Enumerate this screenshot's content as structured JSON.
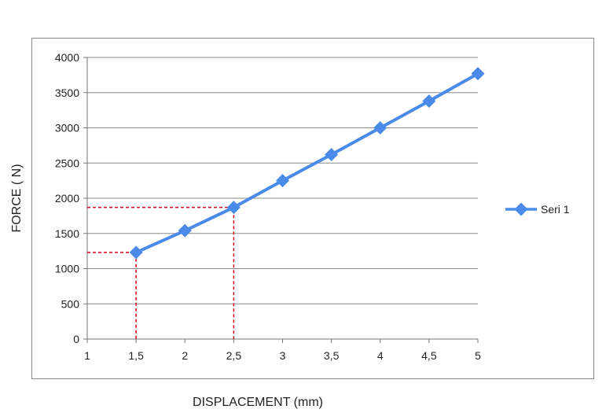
{
  "chart_data": {
    "type": "line",
    "title": "",
    "xlabel": "DISPLACEMENT (mm)",
    "ylabel": "FORCE ( N)",
    "xlim": [
      1,
      5
    ],
    "ylim": [
      0,
      4000
    ],
    "x_ticks": [
      "1",
      "1,5",
      "2",
      "2,5",
      "3",
      "3,5",
      "4",
      "4,5",
      "5"
    ],
    "y_ticks": [
      "0",
      "500",
      "1000",
      "1500",
      "2000",
      "2500",
      "3000",
      "3500",
      "4000"
    ],
    "grid": "horizontal",
    "legend_position": "right",
    "series": [
      {
        "name": "Seri 1",
        "color": "#4a8ae8",
        "marker": "diamond",
        "x": [
          1.5,
          2,
          2.5,
          3,
          3.5,
          4,
          4.5,
          5
        ],
        "y": [
          1230,
          1540,
          1870,
          2250,
          2620,
          3000,
          3380,
          3770
        ]
      }
    ],
    "reference_lines": {
      "color": "#d0021b",
      "style": "dashed",
      "points": [
        {
          "x": 1.5,
          "y": 1230
        },
        {
          "x": 2.5,
          "y": 1870
        }
      ]
    }
  }
}
